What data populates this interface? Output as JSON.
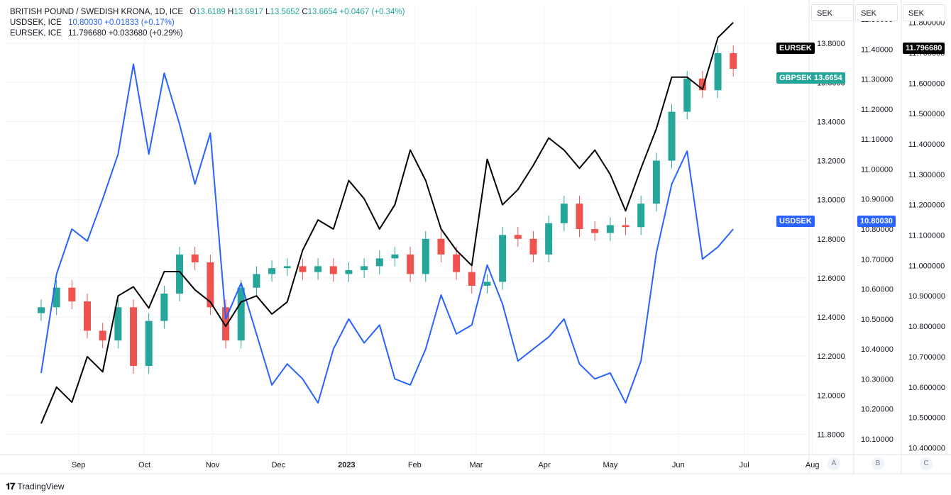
{
  "legend": {
    "main": {
      "title": "BRITISH POUND / SWEDISH KRONA, 1D, ICE",
      "o_label": "O",
      "o": "13.6189",
      "h_label": "H",
      "h": "13.6917",
      "l_label": "L",
      "l": "13.5652",
      "c_label": "C",
      "c": "13.6654",
      "chg": "+0.0467 (+0.34%)"
    },
    "usd": {
      "title": "USDSEK, ICE",
      "value": "10.80030",
      "chg": "+0.01833 (+0.17%)"
    },
    "eur": {
      "title": "EURSEK, ICE",
      "value": "11.796680",
      "chg": "+0.033680 (+0.29%)"
    }
  },
  "axes": {
    "a": {
      "head": "SEK",
      "ticks": [
        "13.8000",
        "13.6000",
        "13.4000",
        "13.2000",
        "13.0000",
        "12.8000",
        "12.6000",
        "12.4000",
        "12.2000",
        "12.0000",
        "11.8000"
      ],
      "btn": "A"
    },
    "b": {
      "head": "SEK",
      "ticks": [
        "11.50000",
        "11.40000",
        "11.30000",
        "11.20000",
        "11.10000",
        "11.00000",
        "10.90000",
        "10.80000",
        "10.70000",
        "10.60000",
        "10.50000",
        "10.40000",
        "10.30000",
        "10.20000",
        "10.10000"
      ],
      "btn": "B"
    },
    "c": {
      "head": "SEK",
      "ticks": [
        "11.800000",
        "11.700000",
        "11.600000",
        "11.500000",
        "11.400000",
        "11.300000",
        "11.200000",
        "11.100000",
        "11.000000",
        "10.900000",
        "10.800000",
        "10.700000",
        "10.600000",
        "10.500000",
        "10.400000"
      ],
      "btn": "C"
    }
  },
  "tags": {
    "eursek_name": "EURSEK",
    "eursek_value": "11.796680",
    "gbpsek_name": "GBPSEK",
    "gbpsek_value": "13.6654",
    "usdsek_name": "USDSEK",
    "usdsek_value": "10.80030"
  },
  "footer": {
    "brand": "TradingView"
  },
  "colors": {
    "up": "#26a69a",
    "down": "#ef5350",
    "usd": "#2962ff",
    "eur": "#000000",
    "grid": "#f0f3fa"
  },
  "chart_data": {
    "type": "line",
    "x_labels": [
      "Sep",
      "Oct",
      "Nov",
      "Dec",
      "2023",
      "Feb",
      "Mar",
      "Apr",
      "May",
      "Jun",
      "Jul",
      "Aug"
    ],
    "x_range": [
      "2022-08-15",
      "2023-08-15"
    ],
    "series": [
      {
        "name": "GBPSEK",
        "type": "candlestick",
        "axis": "A",
        "ylim": [
          11.7,
          14.0
        ],
        "points": [
          {
            "x": "2022-08-15",
            "close": 12.45
          },
          {
            "x": "2022-08-22",
            "close": 12.55
          },
          {
            "x": "2022-08-29",
            "close": 12.48
          },
          {
            "x": "2022-09-05",
            "close": 12.33
          },
          {
            "x": "2022-09-12",
            "close": 12.28
          },
          {
            "x": "2022-09-19",
            "close": 12.45
          },
          {
            "x": "2022-09-26",
            "close": 12.15
          },
          {
            "x": "2022-10-03",
            "close": 12.38
          },
          {
            "x": "2022-10-10",
            "close": 12.52
          },
          {
            "x": "2022-10-17",
            "close": 12.72
          },
          {
            "x": "2022-10-24",
            "close": 12.68
          },
          {
            "x": "2022-10-31",
            "close": 12.45
          },
          {
            "x": "2022-11-07",
            "close": 12.28
          },
          {
            "x": "2022-11-14",
            "close": 12.55
          },
          {
            "x": "2022-11-21",
            "close": 12.62
          },
          {
            "x": "2022-11-28",
            "close": 12.65
          },
          {
            "x": "2022-12-05",
            "close": 12.66
          },
          {
            "x": "2022-12-12",
            "close": 12.63
          },
          {
            "x": "2022-12-19",
            "close": 12.66
          },
          {
            "x": "2022-12-26",
            "close": 12.62
          },
          {
            "x": "2023-01-02",
            "close": 12.64
          },
          {
            "x": "2023-01-09",
            "close": 12.66
          },
          {
            "x": "2023-01-16",
            "close": 12.7
          },
          {
            "x": "2023-01-23",
            "close": 12.72
          },
          {
            "x": "2023-01-30",
            "close": 12.62
          },
          {
            "x": "2023-02-06",
            "close": 12.8
          },
          {
            "x": "2023-02-13",
            "close": 12.72
          },
          {
            "x": "2023-02-20",
            "close": 12.63
          },
          {
            "x": "2023-02-27",
            "close": 12.56
          },
          {
            "x": "2023-03-06",
            "close": 12.58
          },
          {
            "x": "2023-03-13",
            "close": 12.82
          },
          {
            "x": "2023-03-20",
            "close": 12.8
          },
          {
            "x": "2023-03-27",
            "close": 12.72
          },
          {
            "x": "2023-04-03",
            "close": 12.88
          },
          {
            "x": "2023-04-10",
            "close": 12.98
          },
          {
            "x": "2023-04-17",
            "close": 12.85
          },
          {
            "x": "2023-04-24",
            "close": 12.83
          },
          {
            "x": "2023-05-01",
            "close": 12.87
          },
          {
            "x": "2023-05-08",
            "close": 12.86
          },
          {
            "x": "2023-05-15",
            "close": 12.98
          },
          {
            "x": "2023-05-22",
            "close": 13.2
          },
          {
            "x": "2023-05-29",
            "close": 13.45
          },
          {
            "x": "2023-06-05",
            "close": 13.62
          },
          {
            "x": "2023-06-12",
            "close": 13.56
          },
          {
            "x": "2023-06-19",
            "close": 13.75
          },
          {
            "x": "2023-06-26",
            "close": 13.67
          }
        ]
      },
      {
        "name": "USDSEK",
        "axis": "B",
        "ylim": [
          10.05,
          11.55
        ],
        "points": [
          {
            "x": "2022-08-15",
            "y": 10.32
          },
          {
            "x": "2022-08-22",
            "y": 10.65
          },
          {
            "x": "2022-08-29",
            "y": 10.8
          },
          {
            "x": "2022-09-05",
            "y": 10.76
          },
          {
            "x": "2022-09-12",
            "y": 10.9
          },
          {
            "x": "2022-09-19",
            "y": 11.05
          },
          {
            "x": "2022-09-26",
            "y": 11.35
          },
          {
            "x": "2022-10-03",
            "y": 11.05
          },
          {
            "x": "2022-10-10",
            "y": 11.32
          },
          {
            "x": "2022-10-17",
            "y": 11.15
          },
          {
            "x": "2022-10-24",
            "y": 10.95
          },
          {
            "x": "2022-10-31",
            "y": 11.12
          },
          {
            "x": "2022-11-07",
            "y": 10.5
          },
          {
            "x": "2022-11-14",
            "y": 10.62
          },
          {
            "x": "2022-11-21",
            "y": 10.45
          },
          {
            "x": "2022-11-28",
            "y": 10.28
          },
          {
            "x": "2022-12-05",
            "y": 10.35
          },
          {
            "x": "2022-12-12",
            "y": 10.3
          },
          {
            "x": "2022-12-19",
            "y": 10.22
          },
          {
            "x": "2022-12-26",
            "y": 10.4
          },
          {
            "x": "2023-01-02",
            "y": 10.5
          },
          {
            "x": "2023-01-09",
            "y": 10.42
          },
          {
            "x": "2023-01-16",
            "y": 10.48
          },
          {
            "x": "2023-01-23",
            "y": 10.3
          },
          {
            "x": "2023-01-30",
            "y": 10.28
          },
          {
            "x": "2023-02-06",
            "y": 10.4
          },
          {
            "x": "2023-02-13",
            "y": 10.58
          },
          {
            "x": "2023-02-20",
            "y": 10.45
          },
          {
            "x": "2023-02-27",
            "y": 10.48
          },
          {
            "x": "2023-03-06",
            "y": 10.68
          },
          {
            "x": "2023-03-13",
            "y": 10.55
          },
          {
            "x": "2023-03-20",
            "y": 10.36
          },
          {
            "x": "2023-03-27",
            "y": 10.4
          },
          {
            "x": "2023-04-03",
            "y": 10.44
          },
          {
            "x": "2023-04-10",
            "y": 10.5
          },
          {
            "x": "2023-04-17",
            "y": 10.35
          },
          {
            "x": "2023-04-24",
            "y": 10.3
          },
          {
            "x": "2023-05-01",
            "y": 10.32
          },
          {
            "x": "2023-05-08",
            "y": 10.22
          },
          {
            "x": "2023-05-15",
            "y": 10.36
          },
          {
            "x": "2023-05-22",
            "y": 10.72
          },
          {
            "x": "2023-05-29",
            "y": 10.95
          },
          {
            "x": "2023-06-05",
            "y": 11.06
          },
          {
            "x": "2023-06-12",
            "y": 10.7
          },
          {
            "x": "2023-06-19",
            "y": 10.74
          },
          {
            "x": "2023-06-26",
            "y": 10.8
          }
        ]
      },
      {
        "name": "EURSEK",
        "axis": "C",
        "ylim": [
          10.38,
          11.86
        ],
        "points": [
          {
            "x": "2022-08-15",
            "y": 10.48
          },
          {
            "x": "2022-08-22",
            "y": 10.6
          },
          {
            "x": "2022-08-29",
            "y": 10.55
          },
          {
            "x": "2022-09-05",
            "y": 10.7
          },
          {
            "x": "2022-09-12",
            "y": 10.65
          },
          {
            "x": "2022-09-19",
            "y": 10.9
          },
          {
            "x": "2022-09-26",
            "y": 10.93
          },
          {
            "x": "2022-10-03",
            "y": 10.86
          },
          {
            "x": "2022-10-10",
            "y": 10.98
          },
          {
            "x": "2022-10-17",
            "y": 10.98
          },
          {
            "x": "2022-10-24",
            "y": 10.92
          },
          {
            "x": "2022-10-31",
            "y": 10.88
          },
          {
            "x": "2022-11-07",
            "y": 10.8
          },
          {
            "x": "2022-11-14",
            "y": 10.88
          },
          {
            "x": "2022-11-21",
            "y": 10.9
          },
          {
            "x": "2022-11-28",
            "y": 10.84
          },
          {
            "x": "2022-12-05",
            "y": 10.88
          },
          {
            "x": "2022-12-12",
            "y": 11.05
          },
          {
            "x": "2022-12-19",
            "y": 11.15
          },
          {
            "x": "2022-12-26",
            "y": 11.12
          },
          {
            "x": "2023-01-02",
            "y": 11.28
          },
          {
            "x": "2023-01-09",
            "y": 11.22
          },
          {
            "x": "2023-01-16",
            "y": 11.12
          },
          {
            "x": "2023-01-23",
            "y": 11.2
          },
          {
            "x": "2023-01-30",
            "y": 11.38
          },
          {
            "x": "2023-02-06",
            "y": 11.28
          },
          {
            "x": "2023-02-13",
            "y": 11.12
          },
          {
            "x": "2023-02-20",
            "y": 11.05
          },
          {
            "x": "2023-02-27",
            "y": 11.0
          },
          {
            "x": "2023-03-06",
            "y": 11.35
          },
          {
            "x": "2023-03-13",
            "y": 11.2
          },
          {
            "x": "2023-03-20",
            "y": 11.25
          },
          {
            "x": "2023-03-27",
            "y": 11.33
          },
          {
            "x": "2023-04-03",
            "y": 11.42
          },
          {
            "x": "2023-04-10",
            "y": 11.38
          },
          {
            "x": "2023-04-17",
            "y": 11.32
          },
          {
            "x": "2023-04-24",
            "y": 11.38
          },
          {
            "x": "2023-05-01",
            "y": 11.3
          },
          {
            "x": "2023-05-08",
            "y": 11.18
          },
          {
            "x": "2023-05-15",
            "y": 11.32
          },
          {
            "x": "2023-05-22",
            "y": 11.45
          },
          {
            "x": "2023-05-29",
            "y": 11.62
          },
          {
            "x": "2023-06-05",
            "y": 11.62
          },
          {
            "x": "2023-06-12",
            "y": 11.58
          },
          {
            "x": "2023-06-19",
            "y": 11.75
          },
          {
            "x": "2023-06-26",
            "y": 11.8
          }
        ]
      }
    ]
  }
}
